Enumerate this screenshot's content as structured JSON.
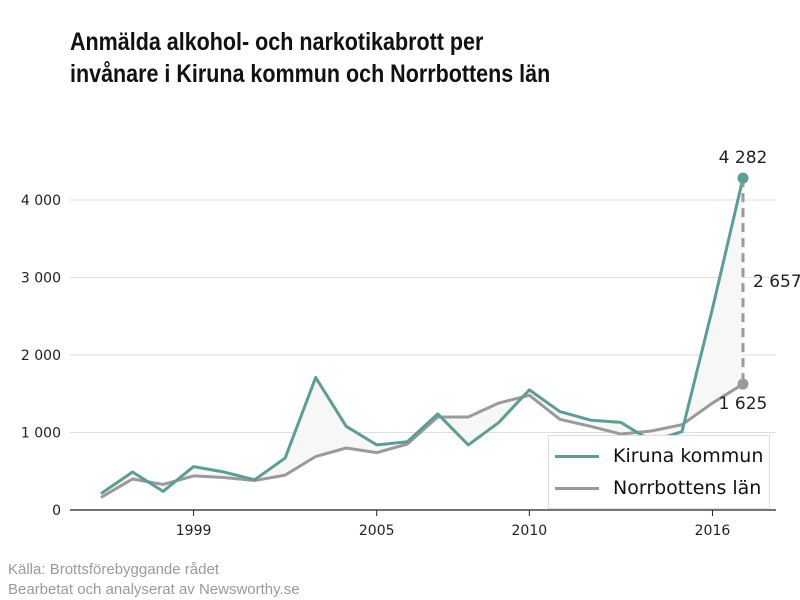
{
  "title": {
    "line1": "Anmälda alkohol- och narkotikabrott per",
    "line2": "invånare i Kiruna kommun och Norrbottens län"
  },
  "source": {
    "line1": "Källa: Brottsförebyggande rådet",
    "line2": "Bearbetat och analyserat av Newsworthy.se"
  },
  "colors": {
    "kiruna": "#5a9e96",
    "norrbotten": "#9a9a9a",
    "shade": "#f7f7f7"
  },
  "chart_data": {
    "type": "line",
    "x": [
      1996,
      1997,
      1998,
      1999,
      2000,
      2001,
      2002,
      2003,
      2004,
      2005,
      2006,
      2007,
      2008,
      2009,
      2010,
      2011,
      2012,
      2013,
      2014,
      2015,
      2016,
      2017
    ],
    "series": [
      {
        "name": "Kiruna kommun",
        "values": [
          220,
          490,
          240,
          560,
          490,
          390,
          670,
          1710,
          1080,
          840,
          880,
          1240,
          840,
          1130,
          1550,
          1270,
          1160,
          1130,
          890,
          1010,
          2600,
          4282
        ]
      },
      {
        "name": "Norrbottens län",
        "values": [
          170,
          400,
          330,
          440,
          420,
          380,
          450,
          690,
          800,
          740,
          850,
          1200,
          1200,
          1380,
          1480,
          1170,
          1080,
          980,
          1020,
          1100,
          1380,
          1625
        ]
      }
    ],
    "xticks": [
      "1999",
      "2005",
      "2010",
      "2016"
    ],
    "yticks": [
      "0",
      "1 000",
      "2 000",
      "3 000",
      "4 000"
    ],
    "ylim": [
      0,
      4500
    ],
    "annotations": {
      "kiruna_last": "4 282",
      "norrbotten_last": "1 625",
      "difference": "2 657"
    },
    "grid": true,
    "legend": "bottom-right"
  }
}
